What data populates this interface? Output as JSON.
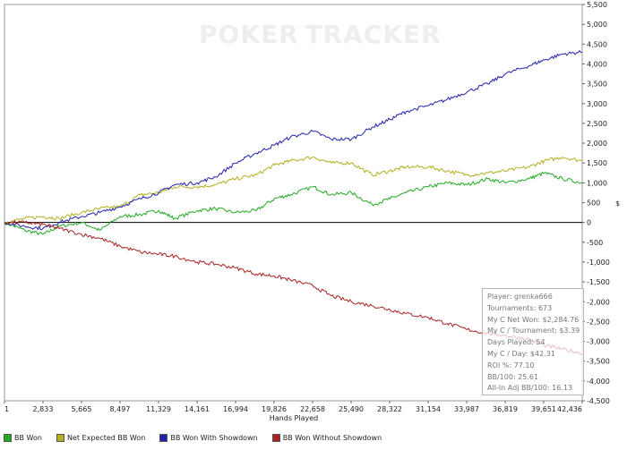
{
  "watermark": {
    "brand_a": "POKER",
    "brand_b": "TRACKER"
  },
  "chart_data": {
    "type": "line",
    "xlabel": "Hands Played",
    "ylabel": "$",
    "xlim": [
      1,
      42436
    ],
    "ylim": [
      -4500,
      5500
    ],
    "x_ticks": [
      "1",
      "2,833",
      "5,665",
      "8,497",
      "11,329",
      "14,161",
      "16,994",
      "19,826",
      "22,658",
      "25,490",
      "28,322",
      "31,154",
      "33,987",
      "36,819",
      "39,651",
      "42,436"
    ],
    "y_ticks": [
      5500,
      5000,
      4500,
      4000,
      3500,
      3000,
      2500,
      2000,
      1500,
      1000,
      500,
      0,
      -500,
      -1000,
      -1500,
      -2000,
      -2500,
      -3000,
      -3500,
      -4000,
      -4500
    ],
    "y_tick_labels": [
      "5,500",
      "5,000",
      "4,500",
      "4,000",
      "3,500",
      "3,000",
      "2,500",
      "2,000",
      "1,500",
      "1,000",
      "500",
      "0",
      "-500",
      "-1,000",
      "-1,500",
      "-2,000",
      "-2,500",
      "-3,000",
      "-3,500",
      "-4,000",
      "-4,500"
    ],
    "series": [
      {
        "name": "BB Won",
        "color": "#22aa22",
        "x": [
          1,
          1500,
          2833,
          4000,
          5665,
          7000,
          8497,
          10000,
          11329,
          12500,
          14161,
          15500,
          16994,
          18500,
          19826,
          21000,
          22658,
          24000,
          25490,
          27000,
          28322,
          29500,
          31154,
          32500,
          33987,
          35500,
          36819,
          38500,
          39651,
          41000,
          42436
        ],
        "y": [
          0,
          -200,
          -300,
          -100,
          0,
          -200,
          150,
          200,
          300,
          100,
          300,
          350,
          250,
          300,
          600,
          700,
          900,
          700,
          750,
          450,
          600,
          750,
          900,
          1000,
          950,
          1100,
          1000,
          1100,
          1250,
          1100,
          1000
        ]
      },
      {
        "name": "Net Expected BB Won",
        "color": "#b0b020",
        "x": [
          1,
          1500,
          2833,
          4000,
          5665,
          7000,
          8497,
          10000,
          11329,
          12500,
          14161,
          15500,
          16994,
          18500,
          19826,
          21000,
          22658,
          24000,
          25490,
          27000,
          28322,
          29500,
          31154,
          32500,
          33987,
          35500,
          36819,
          38500,
          39651,
          41000,
          42436
        ],
        "y": [
          0,
          100,
          150,
          100,
          250,
          350,
          400,
          700,
          750,
          900,
          900,
          950,
          1100,
          1200,
          1450,
          1550,
          1650,
          1500,
          1500,
          1200,
          1300,
          1400,
          1400,
          1300,
          1200,
          1250,
          1300,
          1400,
          1550,
          1650,
          1550
        ]
      },
      {
        "name": "BB Won With Showdown",
        "color": "#2222aa",
        "x": [
          1,
          1500,
          2833,
          4000,
          5665,
          7000,
          8497,
          10000,
          11329,
          12500,
          14161,
          15500,
          16994,
          18500,
          19826,
          21000,
          22658,
          24000,
          25490,
          27000,
          28322,
          29500,
          31154,
          32500,
          33987,
          35500,
          36819,
          38500,
          39651,
          41000,
          42436
        ],
        "y": [
          0,
          -100,
          -150,
          0,
          150,
          250,
          400,
          600,
          750,
          950,
          1000,
          1150,
          1500,
          1750,
          1950,
          2150,
          2300,
          2100,
          2100,
          2400,
          2600,
          2800,
          2950,
          3100,
          3300,
          3500,
          3750,
          3950,
          4100,
          4250,
          4300
        ]
      },
      {
        "name": "BB Won Without Showdown",
        "color": "#aa2222",
        "x": [
          1,
          1500,
          2833,
          4000,
          5665,
          7000,
          8497,
          10000,
          11329,
          12500,
          14161,
          15500,
          16994,
          18500,
          19826,
          21000,
          22658,
          24000,
          25490,
          27000,
          28322,
          29500,
          31154,
          32500,
          33987,
          35500,
          36819,
          38500,
          39651,
          41000,
          42436
        ],
        "y": [
          0,
          0,
          -50,
          -150,
          -300,
          -400,
          -600,
          -750,
          -800,
          -850,
          -1000,
          -1050,
          -1150,
          -1300,
          -1350,
          -1450,
          -1600,
          -1850,
          -2000,
          -2100,
          -2200,
          -2300,
          -2400,
          -2550,
          -2700,
          -2800,
          -2850,
          -2950,
          -3100,
          -3200,
          -3300
        ]
      }
    ],
    "legend_position": "bottom",
    "grid": false
  },
  "stats": [
    "Player: grenka666",
    "Tournaments: 673",
    "My C Net Won: $2,284.76",
    "My C / Tournament: $3.39",
    "Days Played: 54",
    "My C / Day: $42.31",
    "ROI %: 77.10",
    "BB/100: 25.61",
    "All-In Adj BB/100: 16.13"
  ]
}
